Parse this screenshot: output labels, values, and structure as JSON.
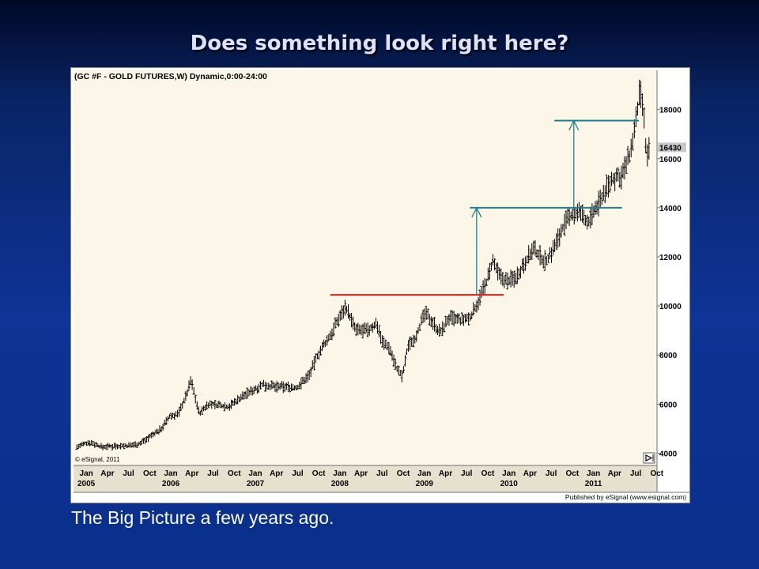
{
  "slide": {
    "title": "Does something look right here?",
    "caption": "The Big Picture a few years ago."
  },
  "chart_data": {
    "type": "bar",
    "style": "ohlc-weekly",
    "title": "(GC #F - GOLD FUTURES,W) Dynamic,0:00-24:00",
    "watermark": "© eSignal, 2011",
    "footer": "Published by eSignal (www.esignal.com)",
    "price_scale": "right",
    "ylim": [
      3500,
      19600
    ],
    "y_ticks": [
      4000,
      6000,
      8000,
      10000,
      12000,
      14000,
      16000,
      18000
    ],
    "last_price": 16430,
    "month_labels": [
      "Jan",
      "Apr",
      "Jul",
      "Oct",
      "Jan",
      "Apr",
      "Jul",
      "Oct",
      "Jan",
      "Apr",
      "Jul",
      "Oct",
      "Jan",
      "Apr",
      "Jul",
      "Oct",
      "Jan",
      "Apr",
      "Jul",
      "Oct",
      "Jan",
      "Apr",
      "Jul",
      "Oct",
      "Jan",
      "Apr",
      "Jul",
      "Oct"
    ],
    "year_labels": [
      "2005",
      "2006",
      "2007",
      "2008",
      "2009",
      "2010",
      "2011"
    ],
    "price_path": [
      [
        2005.0,
        4250
      ],
      [
        2005.15,
        4450
      ],
      [
        2005.3,
        4250
      ],
      [
        2005.45,
        4300
      ],
      [
        2005.6,
        4300
      ],
      [
        2005.75,
        4400
      ],
      [
        2005.9,
        4750
      ],
      [
        2006.0,
        5000
      ],
      [
        2006.1,
        5500
      ],
      [
        2006.2,
        5600
      ],
      [
        2006.3,
        6400
      ],
      [
        2006.35,
        7000
      ],
      [
        2006.4,
        6300
      ],
      [
        2006.45,
        5600
      ],
      [
        2006.55,
        6000
      ],
      [
        2006.7,
        5950
      ],
      [
        2006.8,
        5900
      ],
      [
        2006.95,
        6300
      ],
      [
        2007.1,
        6600
      ],
      [
        2007.2,
        6800
      ],
      [
        2007.35,
        6700
      ],
      [
        2007.5,
        6700
      ],
      [
        2007.6,
        6650
      ],
      [
        2007.75,
        7200
      ],
      [
        2007.85,
        8000
      ],
      [
        2008.0,
        8800
      ],
      [
        2008.1,
        9500
      ],
      [
        2008.18,
        10000
      ],
      [
        2008.3,
        9000
      ],
      [
        2008.45,
        9000
      ],
      [
        2008.55,
        9300
      ],
      [
        2008.62,
        8500
      ],
      [
        2008.7,
        8300
      ],
      [
        2008.78,
        7500
      ],
      [
        2008.85,
        7100
      ],
      [
        2008.92,
        8400
      ],
      [
        2009.0,
        8700
      ],
      [
        2009.12,
        9700
      ],
      [
        2009.2,
        9400
      ],
      [
        2009.3,
        8900
      ],
      [
        2009.4,
        9500
      ],
      [
        2009.55,
        9400
      ],
      [
        2009.65,
        9500
      ],
      [
        2009.75,
        10200
      ],
      [
        2009.85,
        11000
      ],
      [
        2009.92,
        11800
      ],
      [
        2010.0,
        11200
      ],
      [
        2010.1,
        11000
      ],
      [
        2010.2,
        11200
      ],
      [
        2010.3,
        11800
      ],
      [
        2010.4,
        12300
      ],
      [
        2010.55,
        11800
      ],
      [
        2010.65,
        12400
      ],
      [
        2010.75,
        13200
      ],
      [
        2010.85,
        13700
      ],
      [
        2010.95,
        13800
      ],
      [
        2011.05,
        13400
      ],
      [
        2011.15,
        14000
      ],
      [
        2011.25,
        14700
      ],
      [
        2011.35,
        15200
      ],
      [
        2011.45,
        15300
      ],
      [
        2011.55,
        16200
      ],
      [
        2011.62,
        17600
      ],
      [
        2011.66,
        18700
      ],
      [
        2011.7,
        18100
      ],
      [
        2011.74,
        16000
      ],
      [
        2011.78,
        16430
      ]
    ],
    "overlays": {
      "resistance_line": {
        "color": "#d82020",
        "price": 10450,
        "from": 2008.0,
        "to": 2010.05
      },
      "target_line_1": {
        "color": "#1f7f8c",
        "price": 14000,
        "from": 2009.65,
        "to": 2011.45
      },
      "target_line_2": {
        "color": "#1f7f8c",
        "price": 17550,
        "from": 2010.65,
        "to": 2011.65
      },
      "arrow_1": {
        "color": "#1f7f8c",
        "x": 2009.73,
        "from_price": 10450,
        "to_price": 14000
      },
      "arrow_2": {
        "color": "#1f7f8c",
        "x": 2010.88,
        "from_price": 14000,
        "to_price": 17550
      }
    },
    "colors": {
      "plot_bg": "#fcf6e8",
      "bars": "#000000",
      "frame": "#707070"
    }
  }
}
